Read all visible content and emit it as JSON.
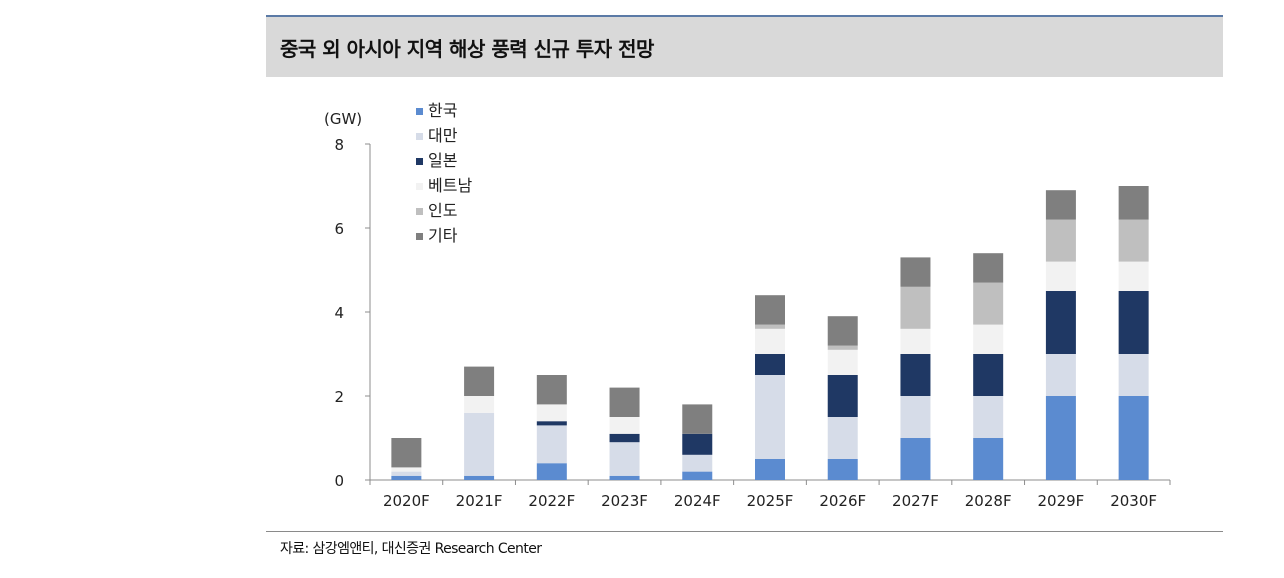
{
  "title": "중국 외 아시아 지역 해상 풍력 신규 투자 전망",
  "source": "자료: 삼강엠앤티, 대신증권 Research Center",
  "chart_data": {
    "type": "bar",
    "stacked": true,
    "ylabel": "(GW)",
    "ylim": [
      0,
      8
    ],
    "yticks": [
      0,
      2,
      4,
      6,
      8
    ],
    "grid": false,
    "legend_position": "top-left",
    "categories": [
      "2020F",
      "2021F",
      "2022F",
      "2023F",
      "2024F",
      "2025F",
      "2026F",
      "2027F",
      "2028F",
      "2029F",
      "2030F"
    ],
    "series": [
      {
        "name": "한국",
        "color": "#5b8bd0",
        "values": [
          0.1,
          0.1,
          0.4,
          0.1,
          0.2,
          0.5,
          0.5,
          1.0,
          1.0,
          2.0,
          2.0
        ]
      },
      {
        "name": "대만",
        "color": "#d6dce8",
        "values": [
          0.1,
          1.5,
          0.9,
          0.8,
          0.4,
          2.0,
          1.0,
          1.0,
          1.0,
          1.0,
          1.0
        ]
      },
      {
        "name": "일본",
        "color": "#1f3864",
        "values": [
          0.0,
          0.0,
          0.1,
          0.2,
          0.5,
          0.5,
          1.0,
          1.0,
          1.0,
          1.5,
          1.5
        ]
      },
      {
        "name": "베트남",
        "color": "#f2f2f2",
        "values": [
          0.1,
          0.4,
          0.4,
          0.4,
          0.0,
          0.6,
          0.6,
          0.6,
          0.7,
          0.7,
          0.7
        ]
      },
      {
        "name": "인도",
        "color": "#bfbfbf",
        "values": [
          0.0,
          0.0,
          0.0,
          0.0,
          0.0,
          0.1,
          0.1,
          1.0,
          1.0,
          1.0,
          1.0
        ]
      },
      {
        "name": "기타",
        "color": "#7f7f7f",
        "values": [
          0.7,
          0.7,
          0.7,
          0.7,
          0.7,
          0.7,
          0.7,
          0.7,
          0.7,
          0.7,
          0.8
        ]
      }
    ]
  }
}
